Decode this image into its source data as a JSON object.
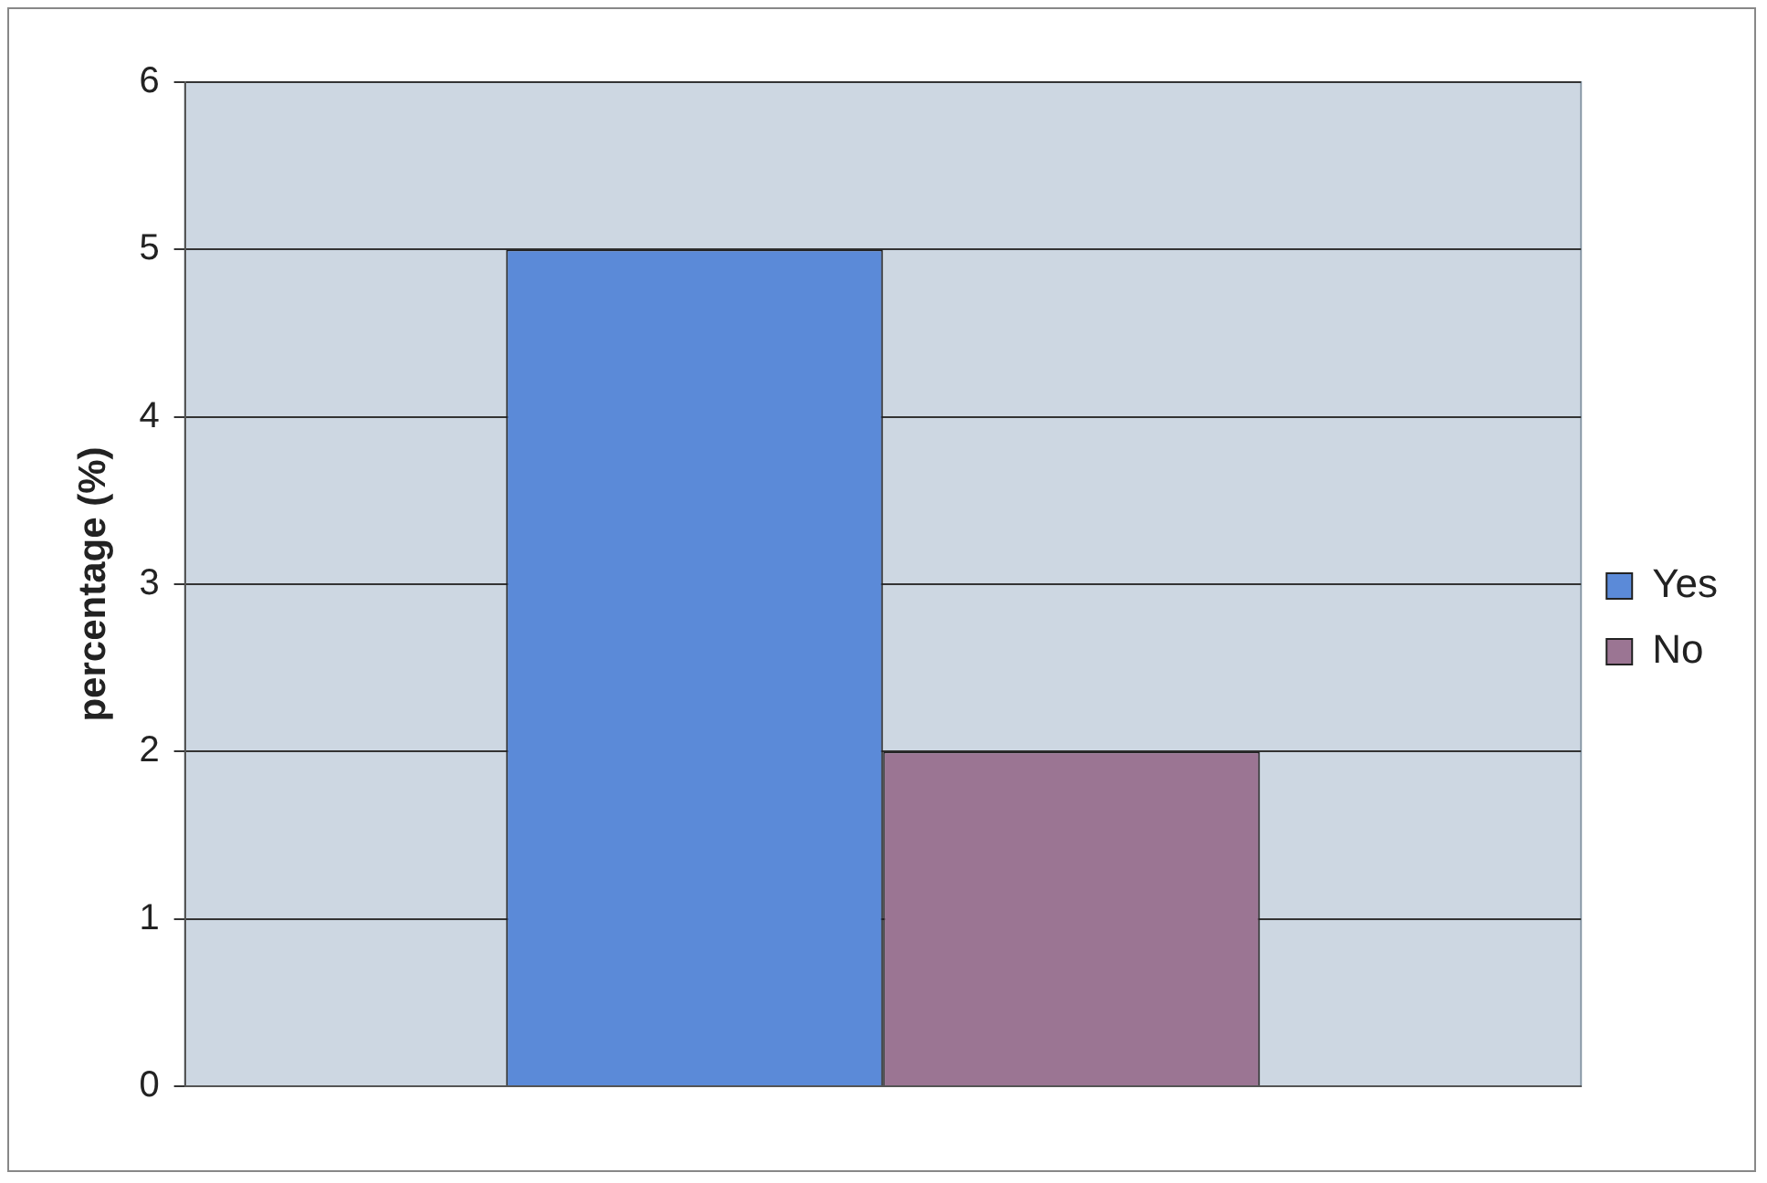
{
  "chart_data": {
    "type": "bar",
    "ylabel": "percentage (%)",
    "categories": [
      null
    ],
    "series": [
      {
        "name": "Yes",
        "color": "#5b8ad8",
        "values": [
          5
        ]
      },
      {
        "name": "No",
        "color": "#9b7593",
        "values": [
          2
        ]
      }
    ],
    "ylim": [
      0,
      6
    ],
    "yticks": [
      0,
      1,
      2,
      3,
      4,
      5,
      6
    ],
    "grid": "y",
    "legend": "right"
  }
}
